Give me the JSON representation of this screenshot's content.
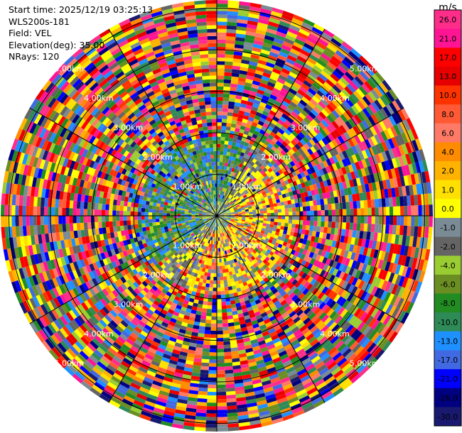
{
  "header": {
    "start_time": "Start time: 2025/12/19 03:25:13",
    "instrument": "WLS200s-181",
    "field": "Field: VEL",
    "elevation": "Elevation(deg): 35.00",
    "nrays": "NRays: 120"
  },
  "chart_data": {
    "type": "heatmap",
    "projection": "polar PPI",
    "field": "VEL",
    "nrays": 120,
    "range_rings_km": [
      1,
      2,
      3,
      4,
      5
    ],
    "range_ring_labels": [
      "1.00km",
      "2.00km",
      "3.00km",
      "4.00km",
      "5.00km"
    ],
    "colorbar": {
      "unit": "m/s",
      "tick_labels": [
        "26.0",
        "21.0",
        "17.0",
        "13.0",
        "10.0",
        "8.0",
        "6.0",
        "4.0",
        "2.0",
        "1.0",
        "0.0",
        "-1.0",
        "-2.0",
        "-4.0",
        "-6.0",
        "-8.0",
        "-10.0",
        "-13.0",
        "-17.0",
        "-21.0",
        "-26.0",
        "-30.0"
      ],
      "colors": [
        "#ff2d8a",
        "#ff1493",
        "#ff0000",
        "#e60000",
        "#ff3300",
        "#ff5a35",
        "#ff7a66",
        "#ff8c00",
        "#ffb300",
        "#ffe000",
        "#ffff00",
        "#7b8b96",
        "#646464",
        "#9acd32",
        "#6b8e23",
        "#228b22",
        "#2e8b57",
        "#1e90ff",
        "#4169e1",
        "#0000ff",
        "#000080",
        "#191970"
      ]
    }
  }
}
